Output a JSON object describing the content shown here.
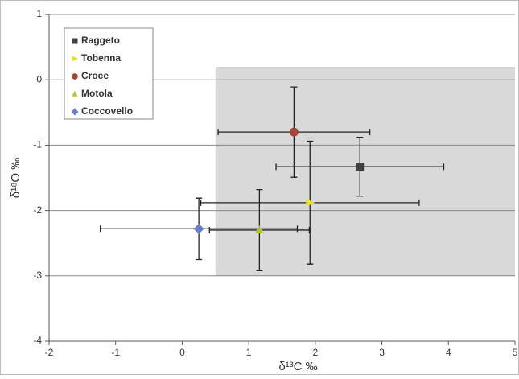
{
  "chart_data": {
    "type": "scatter",
    "xlabel": "δ¹³C ‰",
    "ylabel": "δ¹⁸O ‰",
    "xlim": [
      -2,
      5
    ],
    "ylim": [
      -4,
      1
    ],
    "xticks": [
      -2,
      -1,
      0,
      1,
      2,
      3,
      4,
      5
    ],
    "yticks": [
      -4,
      -3,
      -2,
      -1,
      0,
      1
    ],
    "grid": true,
    "legend": "upper left",
    "shaded_region": {
      "color": "#d9d9d9",
      "xlim": [
        0.5,
        5
      ],
      "ylim": [
        -3,
        0.2
      ]
    },
    "series": [
      {
        "name": "Raggeto",
        "color": "#404040",
        "marker": "square",
        "x": [
          2.67
        ],
        "y": [
          -1.33
        ],
        "xerr": [
          1.26
        ],
        "yerr": [
          0.45
        ]
      },
      {
        "name": "Tobenna",
        "color": "#e6df2e",
        "marker": "triangle-right",
        "x": [
          1.92
        ],
        "y": [
          -1.88
        ],
        "xerr": [
          1.64
        ],
        "yerr": [
          0.94
        ]
      },
      {
        "name": "Croce",
        "color": "#a3473b",
        "marker": "circle",
        "x": [
          1.68
        ],
        "y": [
          -0.8
        ],
        "xerr": [
          1.14
        ],
        "yerr": [
          0.69
        ]
      },
      {
        "name": "Motola",
        "color": "#b7c03e",
        "marker": "triangle-up",
        "x": [
          1.16
        ],
        "y": [
          -2.3
        ],
        "xerr": [
          0.75
        ],
        "yerr": [
          0.62
        ]
      },
      {
        "name": "Coccovello",
        "color": "#6b7fc9",
        "marker": "diamond",
        "x": [
          0.25
        ],
        "y": [
          -2.28
        ],
        "xerr": [
          1.48
        ],
        "yerr": [
          0.47
        ]
      }
    ]
  }
}
